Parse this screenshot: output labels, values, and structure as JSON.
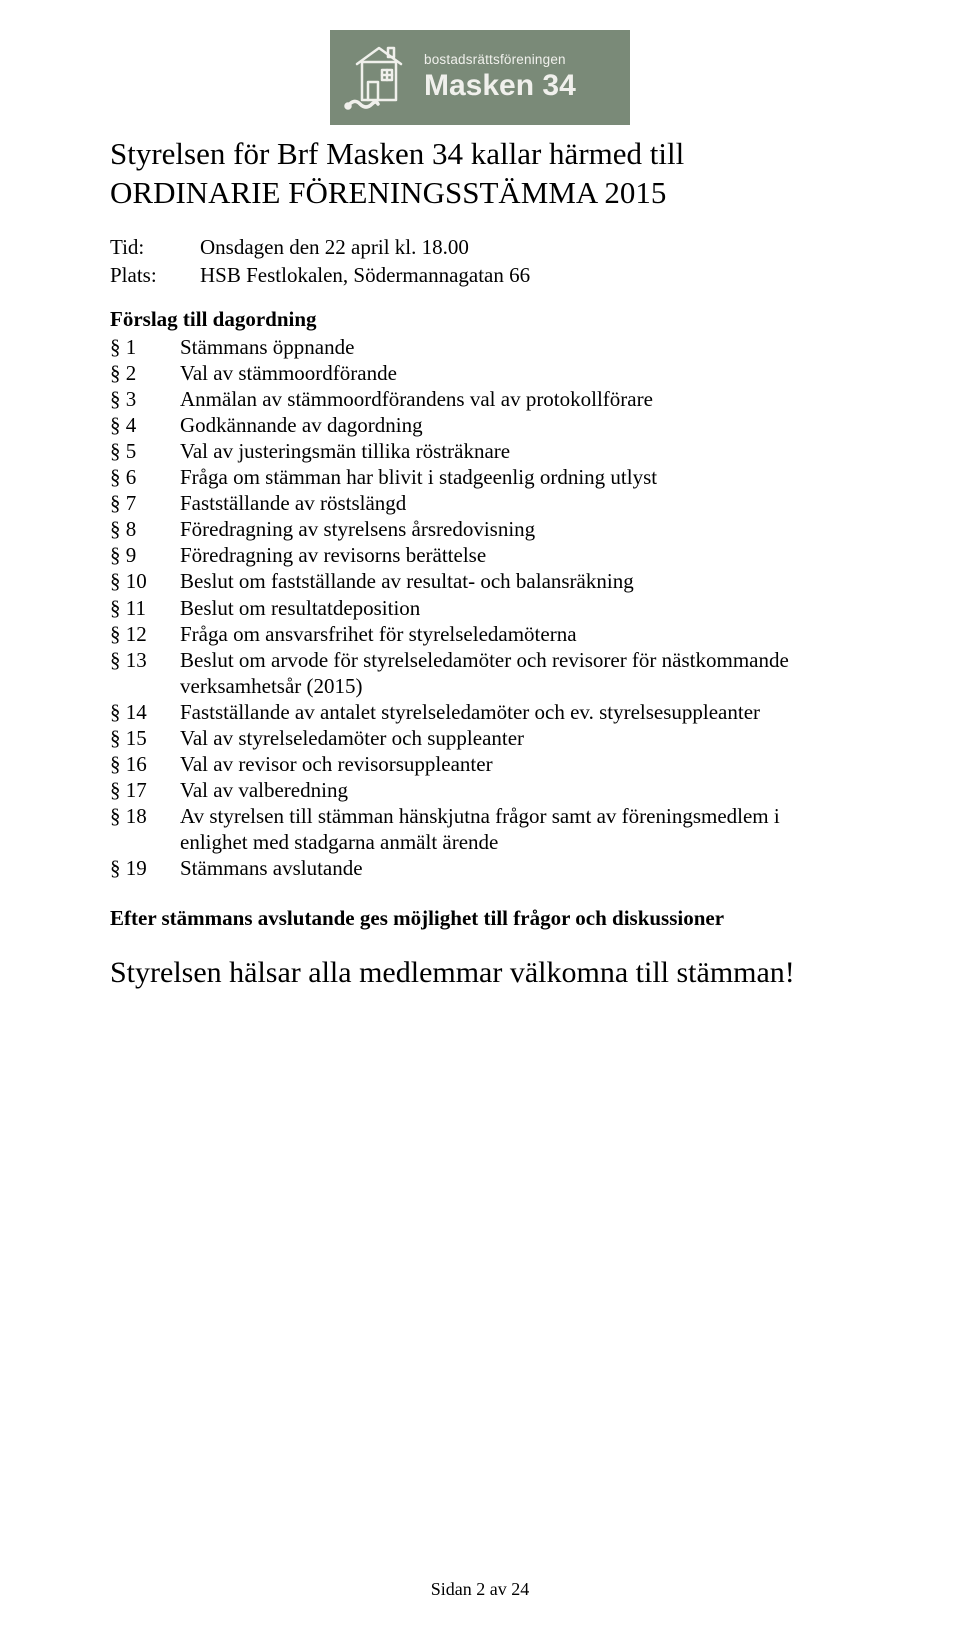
{
  "logo": {
    "subtitle": "bostadsrättsföreningen",
    "title": "Masken 34",
    "bg_color": "#7a8a78",
    "text_color": "#f0f0ec",
    "stroke_color": "#f0f0ec"
  },
  "heading": {
    "line1": "Styrelsen för Brf Masken 34 kallar härmed till",
    "line2": "ORDINARIE FÖRENINGSSTÄMMA 2015"
  },
  "meta": {
    "tid_label": "Tid:",
    "tid_value": "Onsdagen den 22 april kl. 18.00",
    "plats_label": "Plats:",
    "plats_value": "HSB Festlokalen, Södermannagatan 66"
  },
  "agenda_heading": "Förslag till dagordning",
  "agenda": [
    {
      "num": "§ 1",
      "text": "Stämmans öppnande"
    },
    {
      "num": "§ 2",
      "text": "Val av stämmoordförande"
    },
    {
      "num": "§ 3",
      "text": "Anmälan av stämmoordförandens val av protokollförare"
    },
    {
      "num": "§ 4",
      "text": "Godkännande av dagordning"
    },
    {
      "num": "§ 5",
      "text": "Val av justeringsmän tillika rösträknare"
    },
    {
      "num": "§ 6",
      "text": "Fråga om stämman har blivit i stadgeenlig ordning utlyst"
    },
    {
      "num": "§ 7",
      "text": "Fastställande av röstslängd"
    },
    {
      "num": "§ 8",
      "text": "Föredragning av styrelsens årsredovisning"
    },
    {
      "num": "§ 9",
      "text": "Föredragning av revisorns berättelse"
    },
    {
      "num": "§ 10",
      "text": "Beslut om fastställande av resultat- och balansräkning"
    },
    {
      "num": "§ 11",
      "text": "Beslut om resultatdeposition"
    },
    {
      "num": "§ 12",
      "text": "Fråga om ansvarsfrihet för styrelseledamöterna"
    },
    {
      "num": "§ 13",
      "text": "Beslut om arvode för styrelseledamöter och revisorer för nästkommande verksamhetsår (2015)"
    },
    {
      "num": "§ 14",
      "text": "Fastställande av antalet styrelseledamöter och ev. styrelsesuppleanter"
    },
    {
      "num": "§ 15",
      "text": "Val av styrelseledamöter och suppleanter"
    },
    {
      "num": "§ 16",
      "text": "Val av revisor och revisorsuppleanter"
    },
    {
      "num": "§ 17",
      "text": "Val av valberedning"
    },
    {
      "num": "§ 18",
      "text": "Av styrelsen till stämman hänskjutna frågor samt av föreningsmedlem i enlighet med stadgarna anmält ärende"
    },
    {
      "num": "§ 19",
      "text": "Stämmans avslutande"
    }
  ],
  "after_text": "Efter stämmans avslutande ges möjlighet till frågor och diskussioner",
  "welcome": "Styrelsen hälsar alla medlemmar välkomna till stämman!",
  "footer": "Sidan 2 av 24"
}
